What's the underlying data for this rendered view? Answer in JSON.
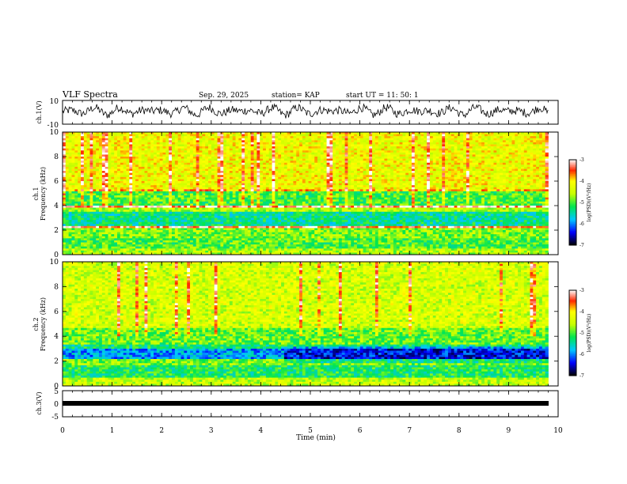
{
  "header": {
    "title": "VLF Spectra",
    "date": "Sep. 29, 2025",
    "station": "station= KAP",
    "start_time": "start  UT =   11: 50: 1"
  },
  "chart_data": [
    {
      "type": "line",
      "name": "ch1-waveform",
      "ylabel": "ch.1(V)",
      "ylim": [
        -10,
        10
      ],
      "ytick_labels": [
        "10",
        "-10"
      ],
      "xlim": [
        0,
        10
      ],
      "description_values": "continuous noisy waveform oscillating roughly between -4 and 6 V over 0–9.8 min"
    },
    {
      "type": "heatmap",
      "name": "ch1-spectrogram",
      "ylabel": "ch.1\nFrequency  (kHz)",
      "ylabel_lines": [
        "ch.1",
        "Frequency  (kHz)"
      ],
      "ylim": [
        0,
        10
      ],
      "ytick_labels": [
        "0",
        "2",
        "4",
        "6",
        "8",
        "10"
      ],
      "xlim": [
        0,
        10
      ],
      "data_end_min": 9.8,
      "bands_khz": [
        {
          "from": 0.0,
          "to": 0.5,
          "level": -4.6
        },
        {
          "from": 0.5,
          "to": 1.4,
          "level": -5.0
        },
        {
          "from": 1.4,
          "to": 2.1,
          "level": -4.8
        },
        {
          "from": 2.1,
          "to": 2.3,
          "level": -3.3
        },
        {
          "from": 2.3,
          "to": 3.5,
          "level": -5.4
        },
        {
          "from": 3.5,
          "to": 3.8,
          "level": -4.6
        },
        {
          "from": 3.8,
          "to": 3.95,
          "level": -3.2
        },
        {
          "from": 3.95,
          "to": 5.2,
          "level": -5.0
        },
        {
          "from": 5.2,
          "to": 5.4,
          "level": -3.8
        },
        {
          "from": 5.4,
          "to": 10.0,
          "level": -4.2
        }
      ],
      "colorbar": {
        "min": -7,
        "max": -3,
        "tick_labels": [
          "-3",
          "-4",
          "-5",
          "-6",
          "-7"
        ],
        "label": "log(PSD)(V²/Hz)"
      }
    },
    {
      "type": "heatmap",
      "name": "ch2-spectrogram",
      "ylabel_lines": [
        "ch.2",
        "Frequency  (kHz)"
      ],
      "ylim": [
        0,
        10
      ],
      "ytick_labels": [
        "0",
        "2",
        "4",
        "6",
        "8",
        "10"
      ],
      "xlim": [
        0,
        10
      ],
      "data_end_min": 9.8,
      "bands_khz": [
        {
          "from": 0.0,
          "to": 0.6,
          "level": -4.5
        },
        {
          "from": 0.6,
          "to": 1.6,
          "level": -5.2
        },
        {
          "from": 1.6,
          "to": 2.2,
          "level": -4.8
        },
        {
          "from": 2.2,
          "to": 3.0,
          "level": -5.9
        },
        {
          "from": 3.0,
          "to": 3.4,
          "level": -5.3
        },
        {
          "from": 3.4,
          "to": 4.6,
          "level": -4.9
        },
        {
          "from": 4.6,
          "to": 10.0,
          "level": -4.4
        }
      ],
      "colorbar": {
        "min": -7,
        "max": -3,
        "tick_labels": [
          "-3",
          "-4",
          "-5",
          "-6",
          "-7"
        ],
        "label": "log(PSD)(V²/Hz)"
      }
    },
    {
      "type": "line",
      "name": "ch3-waveform",
      "ylabel": "ch.3(V)",
      "ylim": [
        -5,
        5
      ],
      "ytick_labels": [
        "5",
        "0",
        "-5"
      ],
      "xlim": [
        0,
        10
      ],
      "constant_value": 0,
      "data_end_min": 9.8
    }
  ],
  "x_axis": {
    "label": "Time  (min)",
    "tick_labels": [
      "0",
      "1",
      "2",
      "3",
      "4",
      "5",
      "6",
      "7",
      "8",
      "9",
      "10"
    ]
  },
  "colors": {
    "colormap": [
      "#ffffff",
      "#ff0000",
      "#ffff00",
      "#00ff00",
      "#00e0ff",
      "#0000ff",
      "#000000"
    ]
  }
}
